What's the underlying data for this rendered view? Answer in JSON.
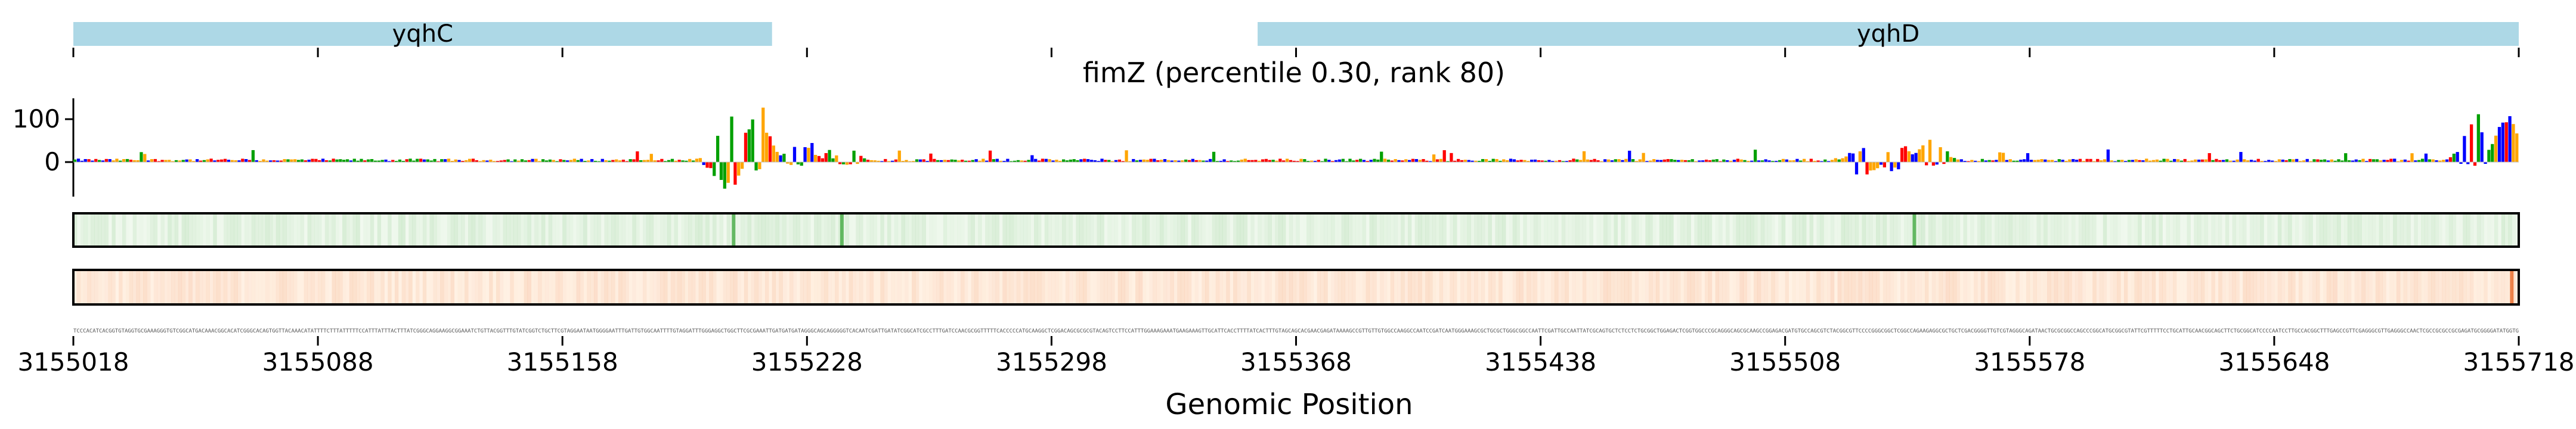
{
  "chart_data": {
    "type": "line",
    "title": "fimZ (percentile 0.30, rank 80)",
    "xlabel": "Genomic Position",
    "ylabel": "",
    "xlim": [
      3155018,
      3155718
    ],
    "ylim": [
      -80,
      150
    ],
    "yticks": [
      0,
      100
    ],
    "xticks": [
      3155018,
      3155088,
      3155158,
      3155228,
      3155298,
      3155368,
      3155438,
      3155508,
      3155578,
      3155648,
      3155718
    ],
    "xtick_labels": [
      "3155018",
      "3155088",
      "3155158",
      "3155228",
      "3155298",
      "3155368",
      "3155438",
      "3155508",
      "3155578",
      "3155648",
      "3155718"
    ],
    "genes": [
      {
        "name": "yqhC",
        "start": 3155018,
        "end": 3155218,
        "color": "#add8e6"
      },
      {
        "name": "yqhD",
        "start": 3155357,
        "end": 3155718,
        "color": "#add8e6"
      }
    ],
    "logo_peaks": [
      {
        "x": 3155205,
        "height": 115,
        "depth": -75
      },
      {
        "x": 3155214,
        "height": 140,
        "depth": -20
      },
      {
        "x": 3155226,
        "height": 40,
        "depth": -10
      },
      {
        "x": 3155240,
        "height": 25,
        "depth": -8
      },
      {
        "x": 3155530,
        "height": 35,
        "depth": -45
      },
      {
        "x": 3155540,
        "height": 45,
        "depth": -25
      },
      {
        "x": 3155550,
        "height": 65,
        "depth": -10
      },
      {
        "x": 3155705,
        "height": 95,
        "depth": -10
      },
      {
        "x": 3155715,
        "height": 130,
        "depth": -5
      }
    ],
    "base_colors": {
      "A": "#ff0000",
      "C": "#0000ff",
      "G": "#ffa500",
      "T": "#00a000"
    },
    "heat_track_1": {
      "color": "#2ca02c",
      "background": "#f1f9ef",
      "hotspots": [
        3155207,
        3155238,
        3155545
      ]
    },
    "heat_track_2": {
      "color": "#e6550d",
      "background": "#fff2e5",
      "hotspots": [
        3155716
      ]
    },
    "sequence": "TCCCACATCACGGTGTAGGTGCGAAAGGGTGTCGGCATGACAAACGGCACATCGGGCACAGTGGTTACAAACATATTTTCTTTATTTTTCCATTTATTTACTTTATCGGGCAGGAAGGCGGAAATCTGTTACGGTTTGTATCGGTCTGCTTCGTAGGAATAATGGGGAATTTGATTGTGGCAATTTTGTAGGATTTGGGAGGCTGGCTTCGCGAAATTGATGATGATAGGGCAGCAGGGGGTCACAATCGATTGATATCGGCATCGCCTTTGATCCAACGCGGTTTTTCACCCCCATGCAAGGCTCGGACAGCGCGCGTACAGTCCTTCCATTTGGAAAGAAATGAAGAAAGTTGCATTCACCTTTTATCACTTTGTAGCAGCACGAACGAGATAAAAGCCGTTGTTGTGGCCAAGGCCAATCCGATCAATGGGAAAGCGCTGCGCTGGGCGGCCAATTCGATTGCCAATTATCGCAGTGCTCTCCTCTGCGGCTGGAGACTCGGTGGCCCGCAGGGCAGCGCAAGCCGGAGACGATGTGCCAGCGTCTACGGCGTTCCCCGGGCGGCTCGGCCAGAAGAGGCGCTGCTCGACGGGGTTGTCGTAGGGCAGATAACTGCGCGGCCAGCCCGGCATGCGGCGTATTCGTTTTTCCTGCATTGCAACGGCAGCTTCTGCGGCATCCCCAATCCTTGCCACGGCTTTGAGCCGTTCGAGGGCGTTGAGGGCCAACTCGCCGCGCCGCGAGATGCGGGGATATGGTG"
  }
}
